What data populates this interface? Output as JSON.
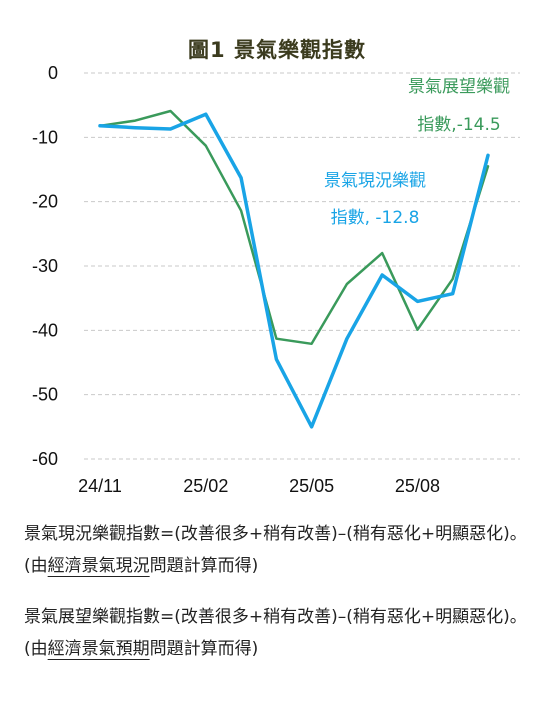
{
  "title": "圖1  景氣樂觀指數",
  "chart_data": {
    "type": "line",
    "title": "圖1  景氣樂觀指數",
    "xlabel": "",
    "ylabel": "",
    "ylim": [
      -60,
      0
    ],
    "yticks": [
      0,
      -10,
      -20,
      -30,
      -40,
      -50,
      -60
    ],
    "x": [
      "24/11",
      "24/12",
      "25/01",
      "25/02",
      "25/03",
      "25/04",
      "25/05",
      "25/06",
      "25/07",
      "25/08",
      "25/09",
      "25/10"
    ],
    "xtick_labels": [
      "24/11",
      "25/02",
      "25/05",
      "25/08"
    ],
    "grid": "horizontal dashed",
    "series": [
      {
        "name": "景氣展望樂觀指數",
        "color": "#3a9a5b",
        "values": [
          -8.2,
          -7.4,
          -5.9,
          -11.3,
          -21.4,
          -41.3,
          -42.1,
          -32.8,
          -28.0,
          -39.9,
          -32.0,
          -14.5
        ]
      },
      {
        "name": "景氣現況樂觀指數",
        "color": "#19a4e6",
        "values": [
          -8.2,
          -8.5,
          -8.7,
          -6.4,
          -16.3,
          -44.5,
          -55.0,
          -41.3,
          -31.4,
          -35.5,
          -34.3,
          -12.8
        ]
      }
    ],
    "annotations": [
      {
        "series": 0,
        "lines": [
          "景氣展望樂觀",
          "指數,-14.5"
        ]
      },
      {
        "series": 1,
        "lines": [
          "景氣現況樂觀",
          "指數, -12.8"
        ]
      }
    ]
  },
  "notes": [
    {
      "before": "景氣現況樂觀指數=(改善很多+稍有改善)–(稍有惡化+明顯惡化)。(由",
      "underlined": "經濟景氣現況",
      "after": "問題計算而得)"
    },
    {
      "before": "景氣展望樂觀指數=(改善很多+稍有改善)–(稍有惡化+明顯惡化)。(由",
      "underlined": "經濟景氣預期",
      "after": "問題計算而得)"
    }
  ]
}
